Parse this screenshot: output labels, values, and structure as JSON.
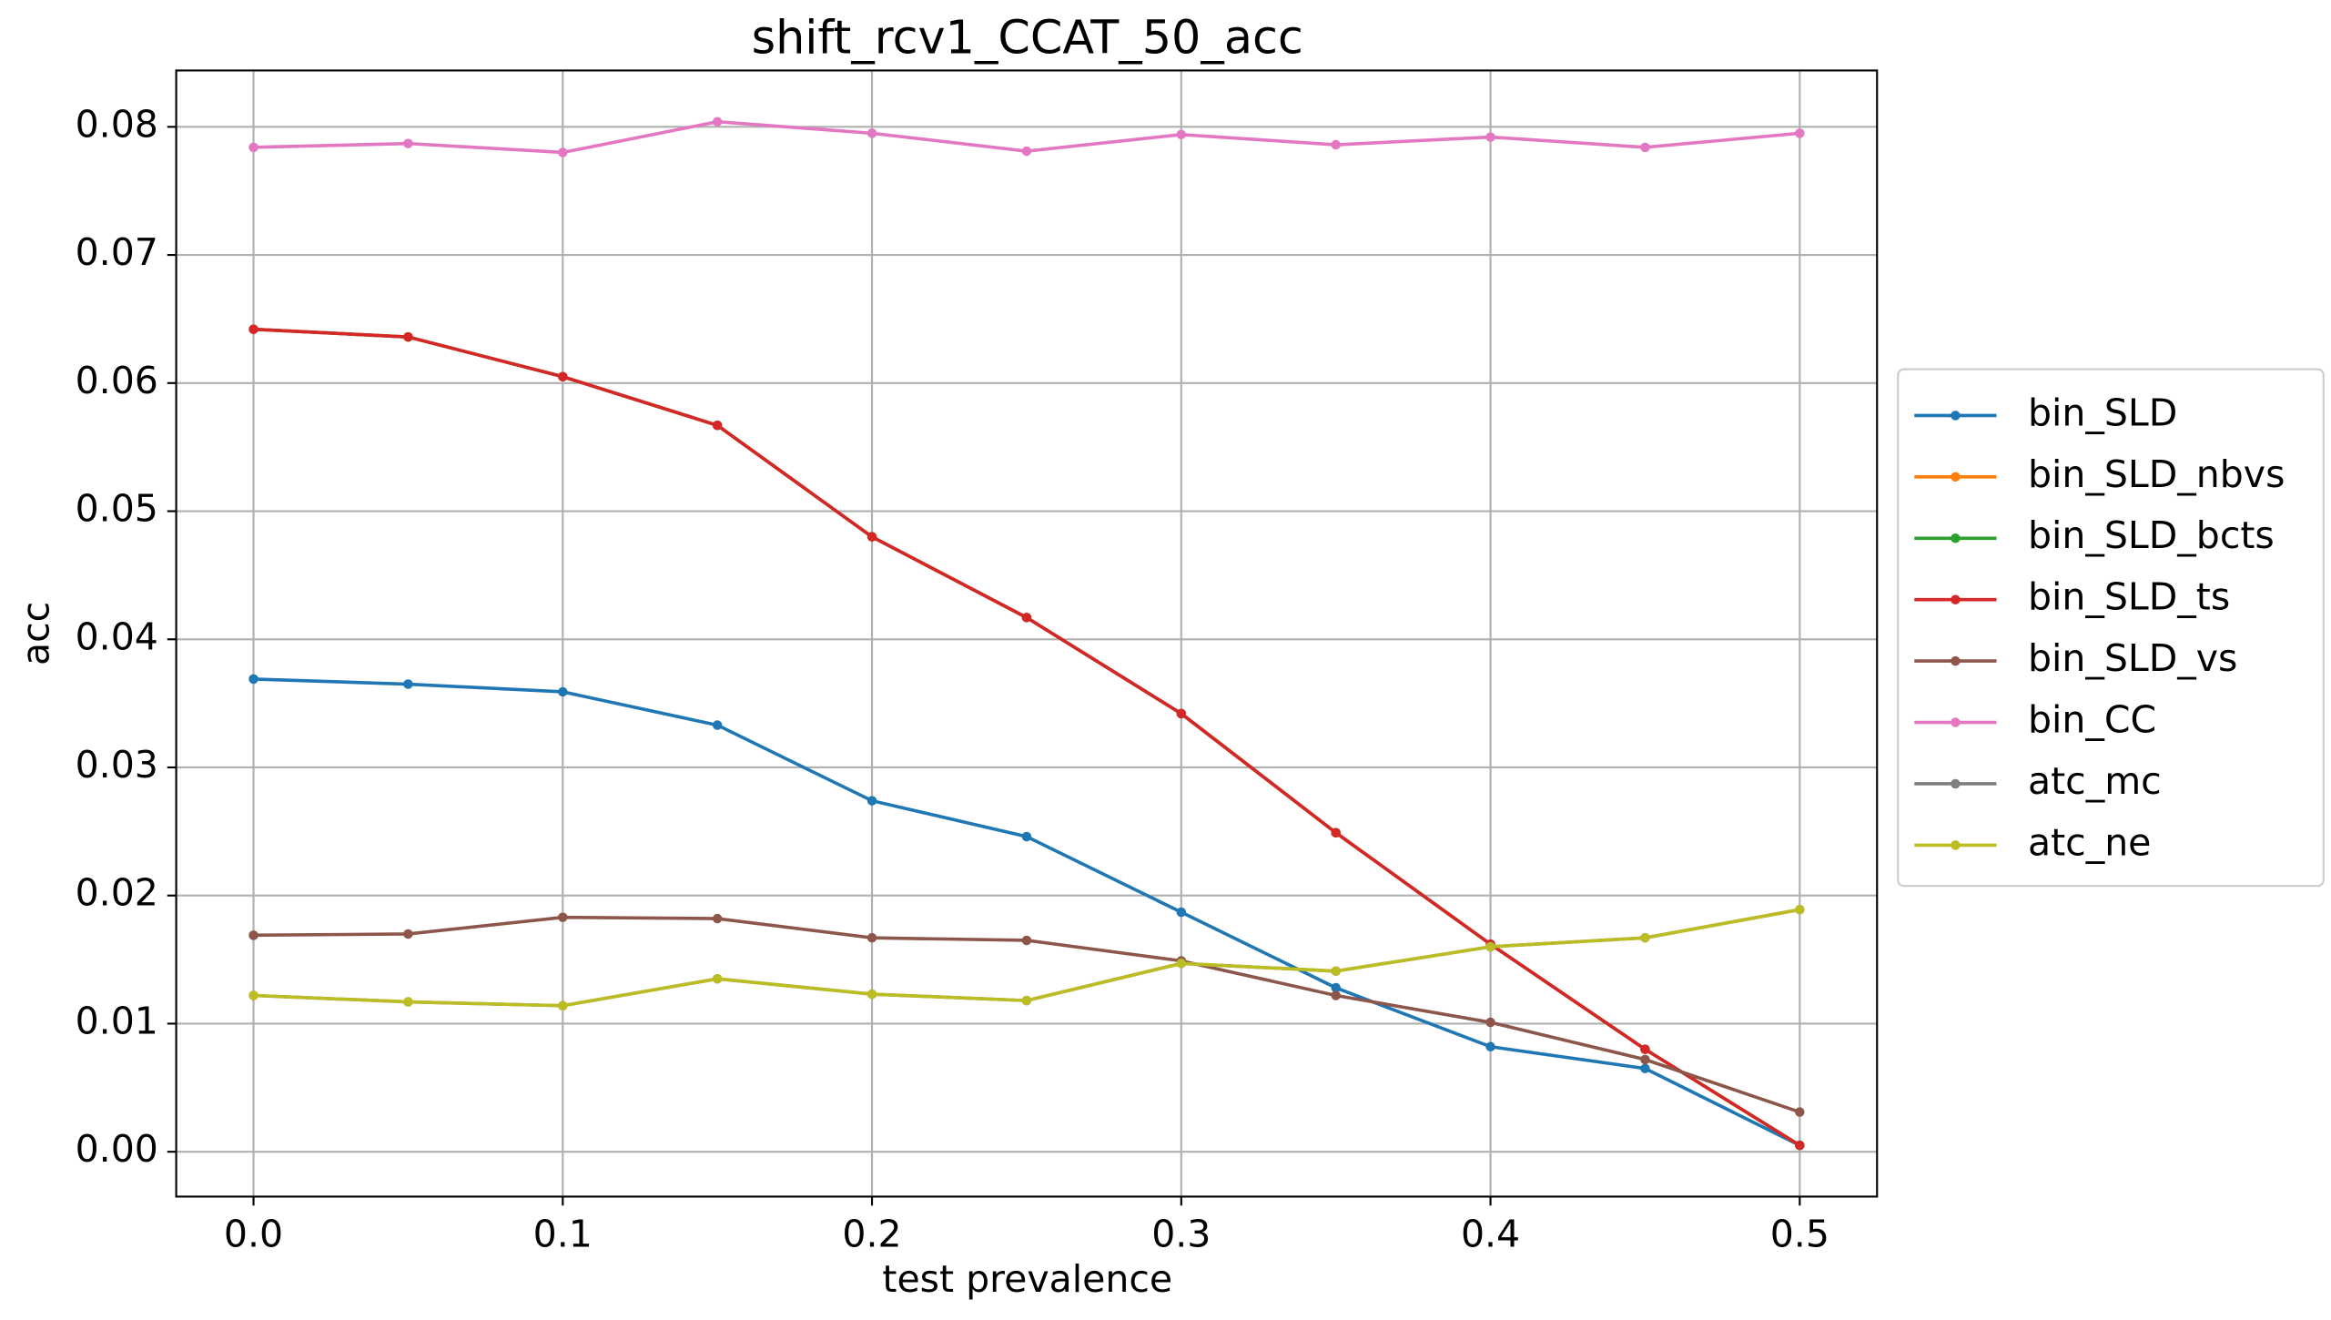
{
  "chart_data": {
    "type": "line",
    "title": "shift_rcv1_CCAT_50_acc",
    "x_label": "test prevalence",
    "y_label": "acc",
    "x": [
      0.0,
      0.05,
      0.1,
      0.15,
      0.2,
      0.25,
      0.3,
      0.35,
      0.4,
      0.45,
      0.5
    ],
    "xlim": [
      -0.025,
      0.525
    ],
    "xticks": [
      {
        "value": 0,
        "label": "0.0"
      },
      0.1,
      0.2,
      0.3,
      0.4,
      0.5
    ],
    "ylim": [
      -0.0035,
      0.0844
    ],
    "yticks": [
      {
        "value": 0,
        "label": "0.00"
      },
      0.01,
      0.02,
      0.03,
      0.04,
      0.05,
      0.06,
      0.07,
      0.08
    ],
    "grid": true,
    "legend": "outside right",
    "series": [
      {
        "name": "bin_SLD",
        "color": "#1f77b4",
        "values": [
          0.0369,
          0.0365,
          0.0359,
          0.0333,
          0.0274,
          0.0246,
          0.0187,
          0.0128,
          0.0082,
          0.0065,
          0.0005
        ]
      },
      {
        "name": "bin_SLD_nbvs",
        "color": "#ff7f0e",
        "values": [
          0.0642,
          0.0636,
          0.0605,
          0.0567,
          0.048,
          0.0417,
          0.0342,
          0.0249,
          0.0162,
          0.008,
          0.0005
        ]
      },
      {
        "name": "bin_SLD_bcts",
        "color": "#2ca02c",
        "values": [
          0.0642,
          0.0636,
          0.0605,
          0.0567,
          0.048,
          0.0417,
          0.0342,
          0.0249,
          0.0162,
          0.008,
          0.0005
        ]
      },
      {
        "name": "bin_SLD_ts",
        "color": "#d62728",
        "values": [
          0.0642,
          0.0636,
          0.0605,
          0.0567,
          0.048,
          0.0417,
          0.0342,
          0.0249,
          0.0162,
          0.008,
          0.0005
        ]
      },
      {
        "name": "bin_SLD_vs",
        "color": "#8c564b",
        "values": [
          0.0169,
          0.017,
          0.0183,
          0.0182,
          0.0167,
          0.0165,
          0.0149,
          0.0122,
          0.0101,
          0.0072,
          0.0031
        ]
      },
      {
        "name": "bin_CC",
        "color": "#e377c2",
        "values": [
          0.0784,
          0.0787,
          0.078,
          0.0804,
          0.0795,
          0.0781,
          0.0794,
          0.0786,
          0.0792,
          0.0784,
          0.0795
        ]
      },
      {
        "name": "atc_mc",
        "color": "#7f7f7f",
        "values": [
          0.0122,
          0.0117,
          0.0114,
          0.0135,
          0.0123,
          0.0118,
          0.0147,
          0.0141,
          0.016,
          0.0167,
          0.0189
        ]
      },
      {
        "name": "atc_ne",
        "color": "#bcbd22",
        "values": [
          0.0122,
          0.0117,
          0.0114,
          0.0135,
          0.0123,
          0.0118,
          0.0147,
          0.0141,
          0.016,
          0.0167,
          0.0189
        ]
      }
    ]
  }
}
